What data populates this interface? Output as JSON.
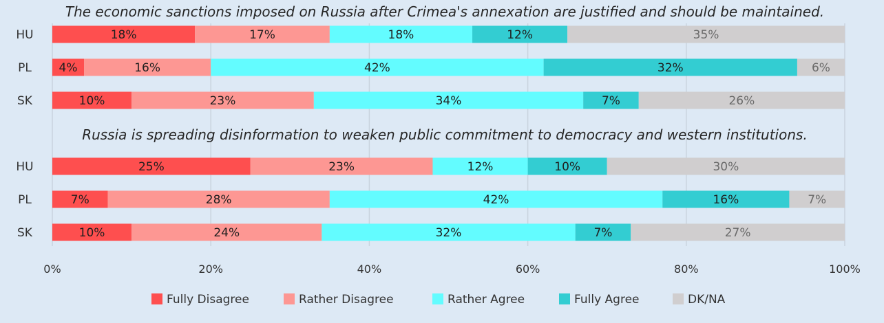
{
  "chart_data": {
    "type": "bar",
    "orientation": "horizontal",
    "stacked": true,
    "xlim": [
      0,
      100
    ],
    "x_ticks": [
      "0%",
      "20%",
      "40%",
      "60%",
      "80%",
      "100%"
    ],
    "grid": true,
    "legend_position": "bottom",
    "legend": [
      {
        "name": "Fully Disagree",
        "color": "#fe4f4f"
      },
      {
        "name": "Rather Disagree",
        "color": "#fd9793"
      },
      {
        "name": "Rather Agree",
        "color": "#63fcff"
      },
      {
        "name": "Fully Agree",
        "color": "#33cdd2"
      },
      {
        "name": "DK/NA",
        "color": "#d0cecf"
      }
    ],
    "panels": [
      {
        "title": "The economic sanctions imposed on Russia after Crimea's annexation are justified and should be maintained.",
        "categories": [
          "HU",
          "PL",
          "SK"
        ],
        "series": [
          {
            "name": "Fully Disagree",
            "values": [
              18,
              4,
              10
            ],
            "labels": [
              "18%",
              "4%",
              "10%"
            ]
          },
          {
            "name": "Rather Disagree",
            "values": [
              17,
              16,
              23
            ],
            "labels": [
              "17%",
              "16%",
              "23%"
            ]
          },
          {
            "name": "Rather Agree",
            "values": [
              18,
              42,
              34
            ],
            "labels": [
              "18%",
              "42%",
              "34%"
            ]
          },
          {
            "name": "Fully Agree",
            "values": [
              12,
              32,
              7
            ],
            "labels": [
              "12%",
              "32%",
              "7%"
            ]
          },
          {
            "name": "DK/NA",
            "values": [
              35,
              6,
              26
            ],
            "labels": [
              "35%",
              "6%",
              "26%"
            ]
          }
        ]
      },
      {
        "title": "Russia is spreading disinformation to weaken public commitment to democracy and western institutions.",
        "categories": [
          "HU",
          "PL",
          "SK"
        ],
        "series": [
          {
            "name": "Fully Disagree",
            "values": [
              25,
              7,
              10
            ],
            "labels": [
              "25%",
              "7%",
              "10%"
            ]
          },
          {
            "name": "Rather Disagree",
            "values": [
              23,
              28,
              24
            ],
            "labels": [
              "23%",
              "28%",
              "24%"
            ]
          },
          {
            "name": "Rather Agree",
            "values": [
              12,
              42,
              32
            ],
            "labels": [
              "12%",
              "42%",
              "32%"
            ]
          },
          {
            "name": "Fully Agree",
            "values": [
              10,
              16,
              7
            ],
            "labels": [
              "10%",
              "16%",
              "7%"
            ]
          },
          {
            "name": "DK/NA",
            "values": [
              30,
              7,
              27
            ],
            "labels": [
              "30%",
              "7%",
              "27%"
            ]
          }
        ]
      }
    ]
  }
}
